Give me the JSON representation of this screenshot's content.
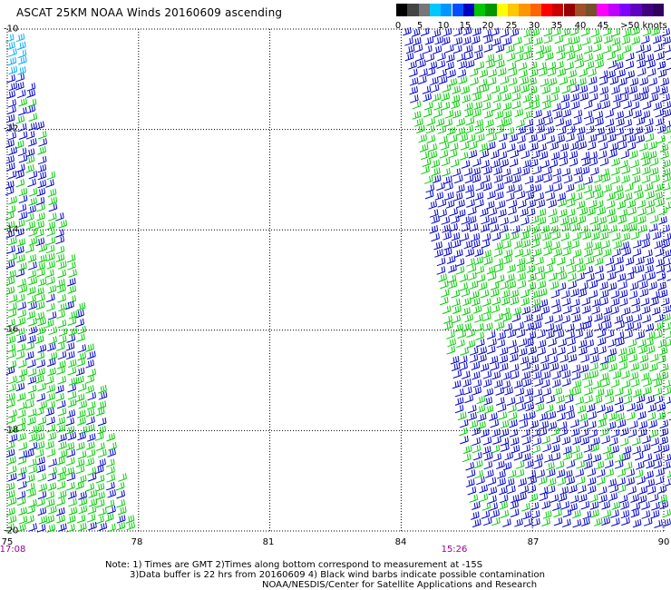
{
  "title": "ASCAT 25KM NOAA Winds 20160609 ascending",
  "legend": {
    "labels": [
      "0",
      "5",
      "10",
      "15",
      "20",
      "25",
      "30",
      "35",
      "40",
      "45",
      ">50 knots"
    ],
    "colors": [
      "#000000",
      "#444444",
      "#777777",
      "#00c8ff",
      "#0096ff",
      "#0050ff",
      "#0000c0",
      "#00c800",
      "#009600",
      "#ffff00",
      "#ffc800",
      "#ff9600",
      "#ff6400",
      "#ff0000",
      "#c80000",
      "#960000",
      "#a05028",
      "#785028",
      "#ff00ff",
      "#c000ff",
      "#8000ff",
      "#6000c0",
      "#400080",
      "#300060"
    ]
  },
  "axes": {
    "x_ticks": [
      "75",
      "78",
      "81",
      "84",
      "87",
      "90"
    ],
    "y_ticks": [
      "-10",
      "-12",
      "-14",
      "-16",
      "-18",
      "-20"
    ],
    "lon_range": [
      75,
      90
    ],
    "lat_range": [
      -20,
      -10
    ]
  },
  "swath_times": [
    {
      "label": "17:08"
    },
    {
      "label": "15:26"
    }
  ],
  "notes": {
    "line1": "Note: 1) Times are GMT 2)Times along bottom correspond to measurement at -15S",
    "line2": "3)Data buffer is 22 hrs from 20160609 4) Black wind barbs indicate possible contamination",
    "line3": "NOAA/NESDIS/Center for Satellite Applications and Research"
  },
  "barb_colors": {
    "low": "#00cc00",
    "mid": "#0000cc",
    "light": "#00aaff"
  }
}
